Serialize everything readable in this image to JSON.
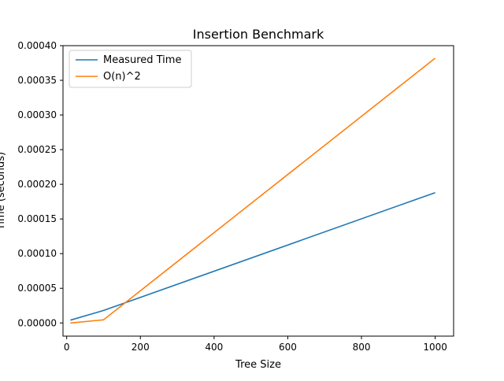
{
  "chart_data": {
    "type": "line",
    "title": "Insertion Benchmark",
    "xlabel": "Tree Size",
    "ylabel": "Time (seconds)",
    "xlim": [
      -10,
      1050
    ],
    "ylim": [
      -1.9e-05,
      0.0004
    ],
    "xticks": [
      0,
      200,
      400,
      600,
      800,
      1000
    ],
    "xtick_labels": [
      "0",
      "200",
      "400",
      "600",
      "800",
      "1000"
    ],
    "yticks": [
      0.0,
      5e-05,
      0.0001,
      0.00015,
      0.0002,
      0.00025,
      0.0003,
      0.00035,
      0.0004
    ],
    "ytick_labels": [
      "0.00000",
      "0.00005",
      "0.00010",
      "0.00015",
      "0.00020",
      "0.00025",
      "0.00030",
      "0.00035",
      "0.00040"
    ],
    "grid": false,
    "legend_position": "top-left",
    "series": [
      {
        "name": "Measured Time",
        "color": "#1f77b4",
        "x": [
          10,
          100,
          1000
        ],
        "y": [
          4e-06,
          1.8e-05,
          0.000188
        ]
      },
      {
        "name": "O(n)^2",
        "color": "#ff7f0e",
        "x": [
          10,
          100,
          1000
        ],
        "y": [
          0.0,
          4.5e-06,
          0.000382
        ]
      }
    ]
  }
}
